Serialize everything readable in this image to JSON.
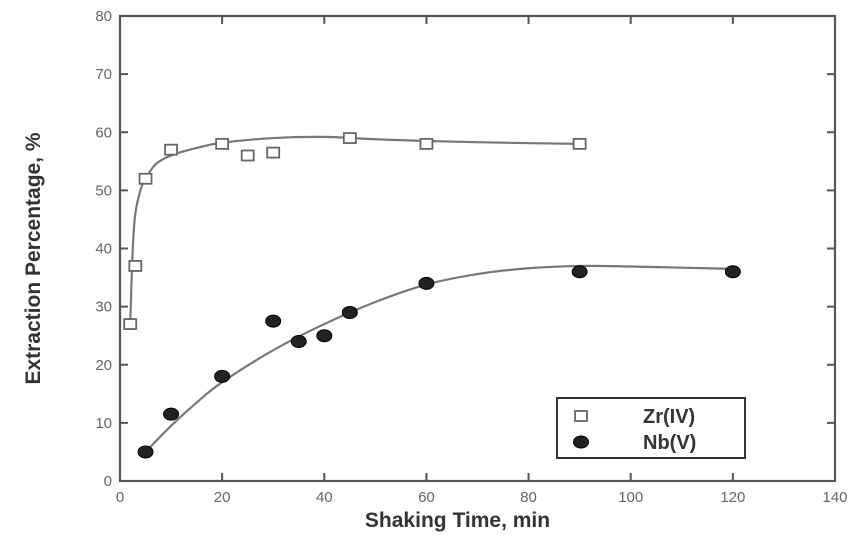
{
  "chart_data": {
    "type": "scatter",
    "xlabel": "Shaking Time, min",
    "ylabel": "Extraction Percentage, %",
    "xlim": [
      0,
      140
    ],
    "ylim": [
      0,
      80
    ],
    "x_ticks": [
      0,
      20,
      40,
      60,
      80,
      100,
      120,
      140
    ],
    "y_ticks": [
      0,
      10,
      20,
      30,
      40,
      50,
      60,
      70,
      80
    ],
    "x_tick_labels": [
      "0",
      "20",
      "40",
      "60",
      "80",
      "100",
      "120",
      "140"
    ],
    "y_tick_labels": [
      "0",
      "10",
      "20",
      "30",
      "40",
      "50",
      "60",
      "70",
      "80"
    ],
    "grid": false,
    "legend_position": "bottom-right",
    "series": [
      {
        "name": "Zr(IV)",
        "marker": "open-square",
        "color": "#555555",
        "x": [
          2,
          3,
          5,
          10,
          20,
          25,
          30,
          45,
          60,
          90
        ],
        "y": [
          27,
          37,
          52,
          57,
          58,
          56,
          56.5,
          59,
          58,
          58
        ],
        "fit_curve": {
          "x": [
            2,
            2.5,
            3,
            4,
            5,
            7,
            10,
            15,
            20,
            30,
            40,
            50,
            60,
            75,
            90
          ],
          "y": [
            27,
            40,
            46,
            50,
            52,
            54.5,
            56,
            57.3,
            58.2,
            59,
            59.2,
            58.8,
            58.5,
            58.2,
            58
          ]
        }
      },
      {
        "name": "Nb(V)",
        "marker": "filled-circle",
        "color": "#222222",
        "x": [
          5,
          10,
          20,
          30,
          35,
          40,
          45,
          60,
          90,
          120
        ],
        "y": [
          5,
          11.5,
          18,
          27.5,
          24,
          25,
          29,
          34,
          36,
          36
        ],
        "fit_curve": {
          "x": [
            5,
            10,
            15,
            20,
            30,
            40,
            50,
            60,
            70,
            80,
            90,
            100,
            110,
            120
          ],
          "y": [
            5,
            9.5,
            13.5,
            17,
            22.5,
            27,
            30.8,
            33.8,
            35.6,
            36.6,
            37,
            36.9,
            36.7,
            36.5
          ]
        }
      }
    ]
  }
}
